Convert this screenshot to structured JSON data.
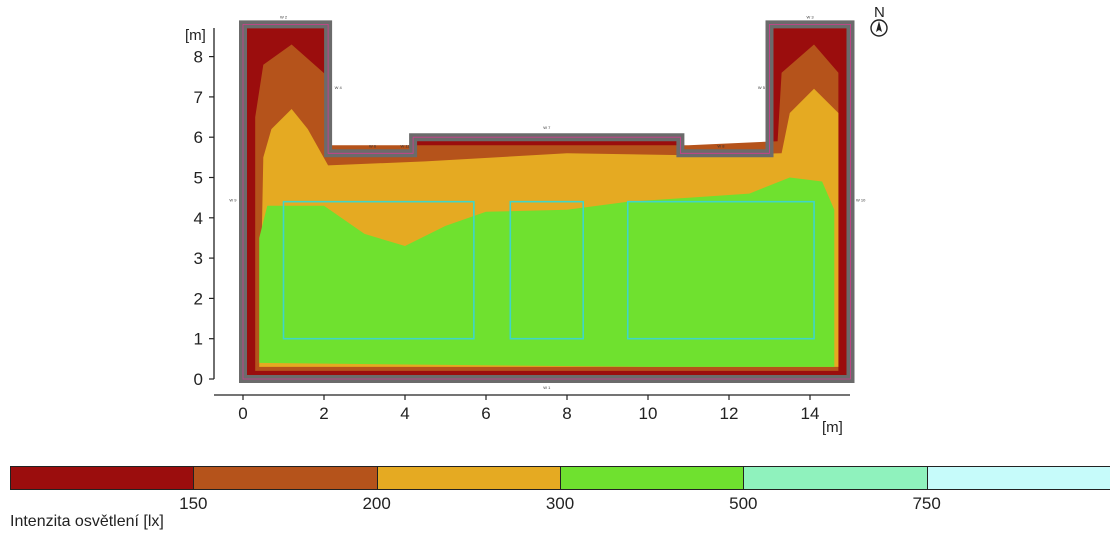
{
  "chart_data": {
    "type": "heatmap",
    "title": "",
    "xlabel": "[m]",
    "ylabel": "[m]",
    "north_label": "N",
    "xlim": [
      0,
      15
    ],
    "ylim": [
      0,
      8.8
    ],
    "x_ticks": [
      "0",
      "2",
      "4",
      "6",
      "8",
      "10",
      "12",
      "14"
    ],
    "y_ticks": [
      "0",
      "1",
      "2",
      "3",
      "4",
      "5",
      "6",
      "7",
      "8"
    ],
    "room_outline_m": [
      [
        0,
        0
      ],
      [
        15,
        0
      ],
      [
        15,
        8.8
      ],
      [
        13,
        8.8
      ],
      [
        13,
        5.6
      ],
      [
        10.8,
        5.6
      ],
      [
        10.8,
        6
      ],
      [
        4.2,
        6
      ],
      [
        4.2,
        5.6
      ],
      [
        2.1,
        5.6
      ],
      [
        2.1,
        8.8
      ],
      [
        0,
        8.8
      ]
    ],
    "bands": [
      {
        "range": "<150",
        "color": "#9b0d0d"
      },
      {
        "range": "150-200",
        "color": "#b5531b"
      },
      {
        "range": "200-300",
        "color": "#e5aa22"
      },
      {
        "range": "300-500",
        "color": "#6fe12f"
      },
      {
        "range": "500-750",
        "color": "#8ff2bd"
      },
      {
        "range": ">750",
        "color": "#c6fbfa"
      }
    ],
    "zone_contours_m": {
      "level_150": [
        [
          0.3,
          0.2
        ],
        [
          14.7,
          0.2
        ],
        [
          14.7,
          7.6
        ],
        [
          14.1,
          8.3
        ],
        [
          13.3,
          7.6
        ],
        [
          13.2,
          5.9
        ],
        [
          11,
          5.8
        ],
        [
          10.7,
          5.8
        ],
        [
          4.2,
          5.8
        ],
        [
          2.1,
          5.8
        ],
        [
          2.1,
          7.5
        ],
        [
          1.2,
          8.3
        ],
        [
          0.5,
          7.8
        ],
        [
          0.3,
          6.5
        ]
      ],
      "level_200": [
        [
          0.4,
          0.3
        ],
        [
          14.7,
          0.3
        ],
        [
          14.7,
          6.6
        ],
        [
          14.1,
          7.2
        ],
        [
          13.5,
          6.6
        ],
        [
          13.3,
          5.6
        ],
        [
          11,
          5.55
        ],
        [
          8,
          5.6
        ],
        [
          4.5,
          5.4
        ],
        [
          2.1,
          5.3
        ],
        [
          1.6,
          6.2
        ],
        [
          1.2,
          6.7
        ],
        [
          0.7,
          6.2
        ],
        [
          0.5,
          5.5
        ]
      ],
      "level_300": [
        [
          0.4,
          0.4
        ],
        [
          5,
          0.35
        ],
        [
          10,
          0.3
        ],
        [
          14.6,
          0.3
        ],
        [
          14.6,
          4.2
        ],
        [
          14.3,
          4.9
        ],
        [
          13.5,
          5
        ],
        [
          12.5,
          4.6
        ],
        [
          11,
          4.5
        ],
        [
          9.5,
          4.4
        ],
        [
          8,
          4.2
        ],
        [
          6,
          4.15
        ],
        [
          5,
          3.8
        ],
        [
          4,
          3.3
        ],
        [
          3,
          3.6
        ],
        [
          2,
          4.3
        ],
        [
          0.6,
          4.3
        ],
        [
          0.4,
          3.5
        ]
      ]
    },
    "calculation_grids_m": [
      {
        "x0": 1.0,
        "y0": 1.0,
        "x1": 5.7,
        "y1": 4.4
      },
      {
        "x0": 6.6,
        "y0": 1.0,
        "x1": 8.4,
        "y1": 4.4
      },
      {
        "x0": 9.5,
        "y0": 1.0,
        "x1": 14.1,
        "y1": 4.4
      }
    ],
    "surface_labels": [
      "W 1",
      "W 2",
      "W 3",
      "W 4",
      "W 5",
      "W 6",
      "W 7",
      "W 8",
      "W 9",
      "W 10",
      "W 11"
    ],
    "legend": {
      "title": "Intenzita osvětlení [lx]",
      "thresholds": [
        "150",
        "200",
        "300",
        "500",
        "750"
      ],
      "colors": [
        "#9b0d0d",
        "#b5531b",
        "#e5aa22",
        "#6fe12f",
        "#8ff2bd",
        "#c6fbfa"
      ]
    }
  }
}
